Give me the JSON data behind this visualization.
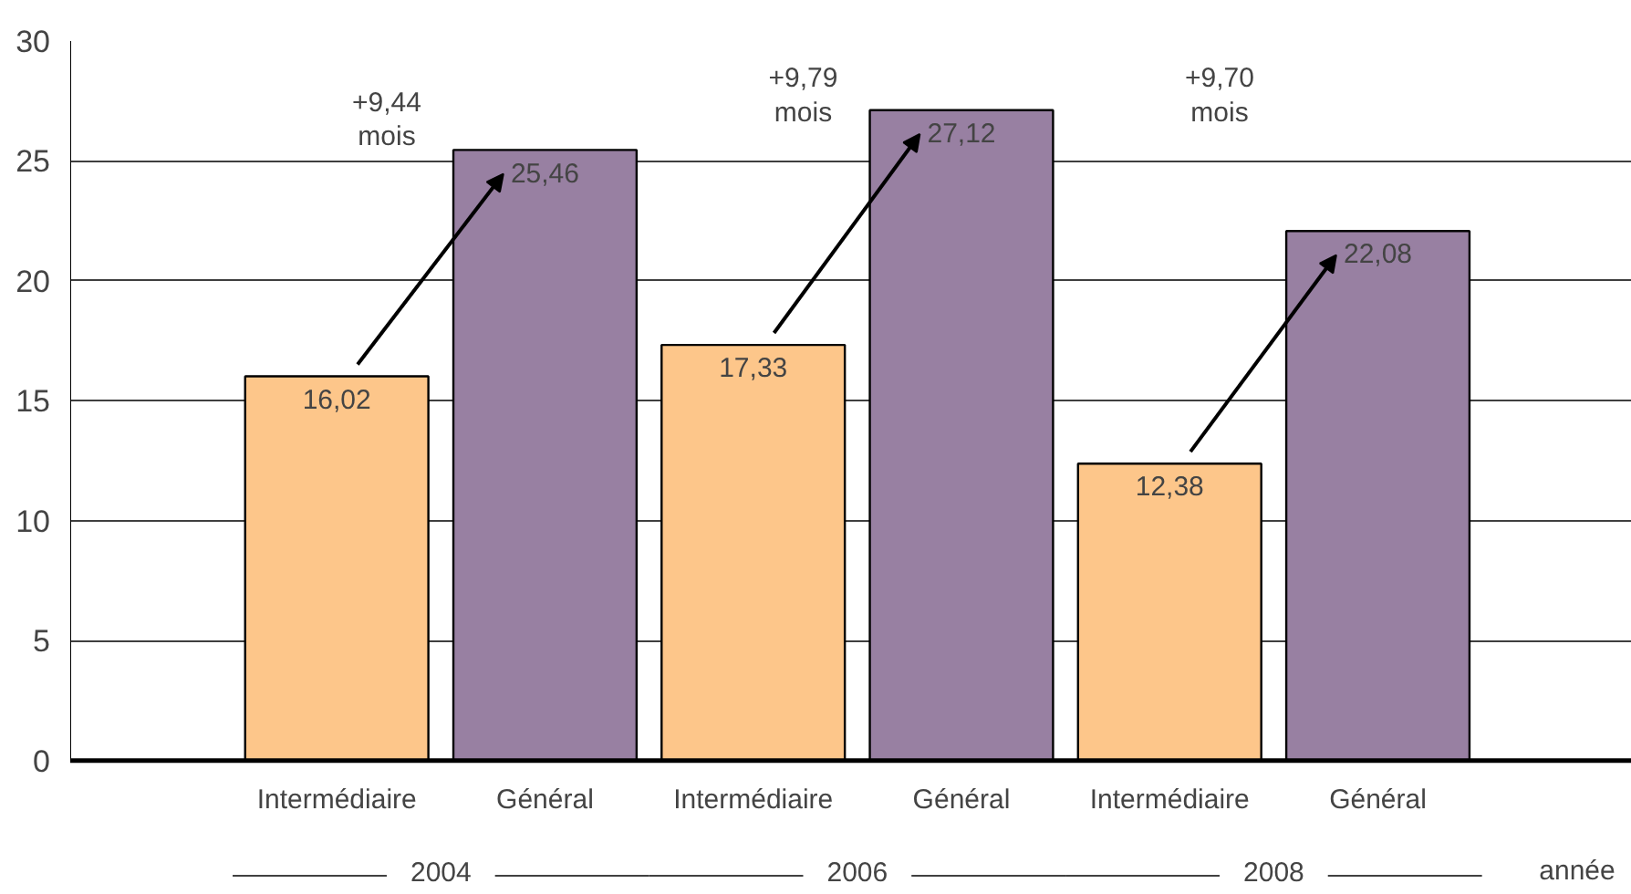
{
  "chart_data": {
    "type": "bar",
    "categories": [
      "2004",
      "2006",
      "2008"
    ],
    "xlabel": "année",
    "series": [
      {
        "name": "Intermédiaire",
        "color": "#fdc68a",
        "values": [
          16.02,
          17.33,
          12.38
        ],
        "value_labels": [
          "16,02",
          "17,33",
          "12,38"
        ]
      },
      {
        "name": "Général",
        "color": "#9880a2",
        "values": [
          25.46,
          27.12,
          22.08
        ],
        "value_labels": [
          "25,46",
          "27,12",
          "22,08"
        ]
      }
    ],
    "ylim": [
      0,
      30
    ],
    "yticks": [
      0,
      5,
      10,
      15,
      20,
      25,
      30
    ],
    "grid": "y",
    "annotations": [
      "+9,44\nmois",
      "+9,79\nmois",
      "+9,70\nmois"
    ]
  }
}
